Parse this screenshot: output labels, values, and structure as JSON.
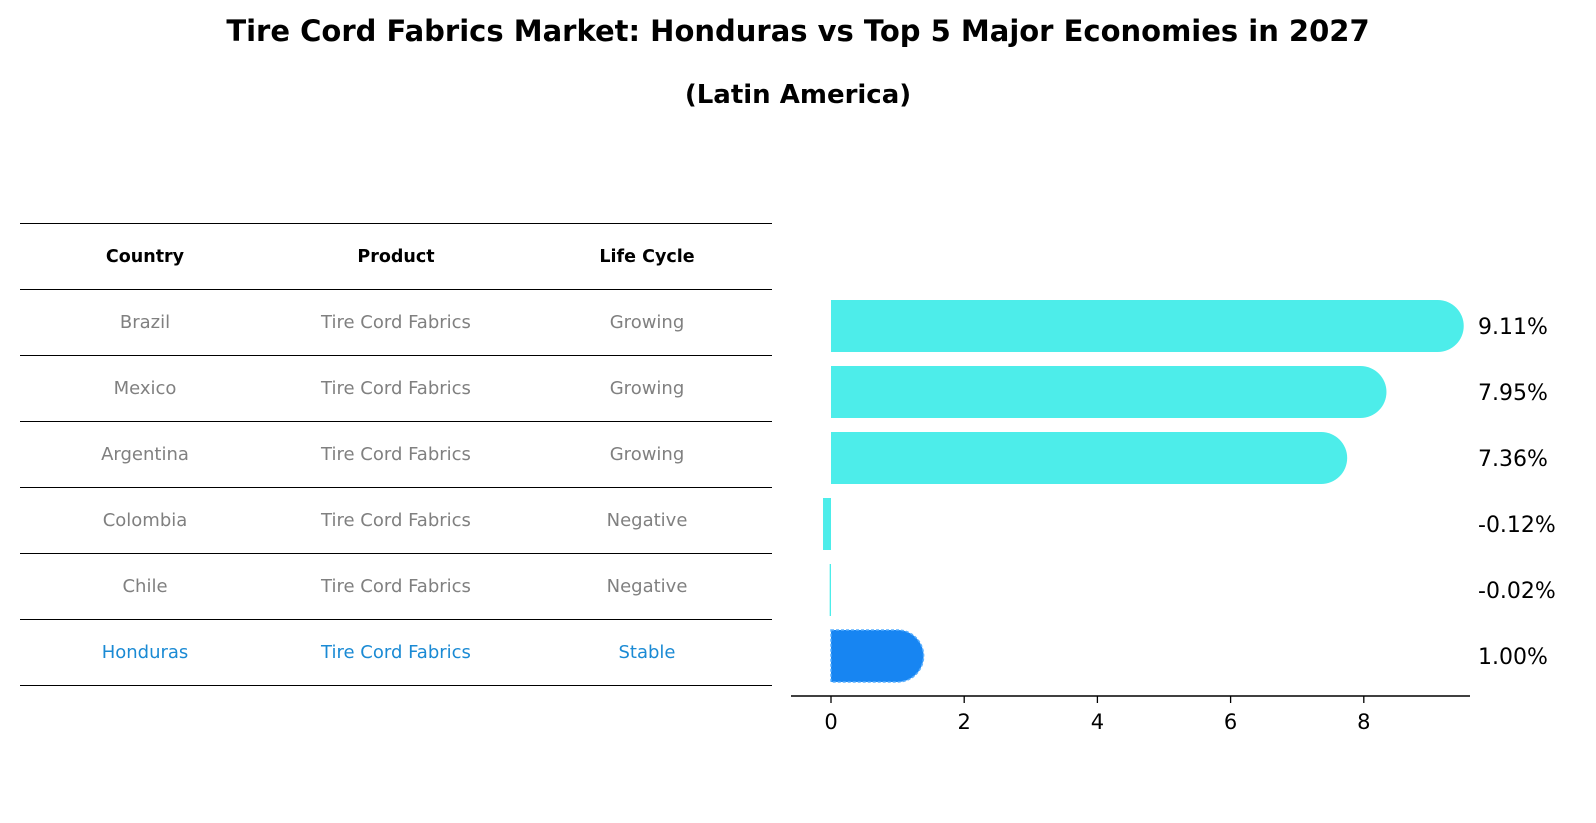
{
  "title": "Tire Cord Fabrics Market: Honduras vs Top 5 Major Economies in 2027",
  "subtitle": "(Latin America)",
  "table": {
    "headers": [
      "Country",
      "Product",
      "Life Cycle"
    ],
    "rows": [
      {
        "country": "Brazil",
        "product": "Tire Cord Fabrics",
        "life_cycle": "Growing"
      },
      {
        "country": "Mexico",
        "product": "Tire Cord Fabrics",
        "life_cycle": "Growing"
      },
      {
        "country": "Argentina",
        "product": "Tire Cord Fabrics",
        "life_cycle": "Growing"
      },
      {
        "country": "Colombia",
        "product": "Tire Cord Fabrics",
        "life_cycle": "Negative"
      },
      {
        "country": "Chile",
        "product": "Tire Cord Fabrics",
        "life_cycle": "Negative"
      },
      {
        "country": "Honduras",
        "product": "Tire Cord Fabrics",
        "life_cycle": "Stable"
      }
    ]
  },
  "colors": {
    "bar": "#4dedea",
    "highlight": "#1785f2",
    "highlight_text": "#1a8ad4",
    "muted_text": "#808080"
  },
  "chart_data": {
    "type": "bar",
    "orientation": "horizontal",
    "categories": [
      "Brazil",
      "Mexico",
      "Argentina",
      "Colombia",
      "Chile",
      "Honduras"
    ],
    "values": [
      9.11,
      7.95,
      7.36,
      -0.12,
      -0.02,
      1.0
    ],
    "value_labels": [
      "9.11%",
      "7.95%",
      "7.36%",
      "-0.12%",
      "-0.02%",
      "1.00%"
    ],
    "highlight": "Honduras",
    "xlim": [
      -0.6,
      9.6
    ],
    "xticks": [
      0,
      2,
      4,
      6,
      8
    ],
    "grid": false
  }
}
